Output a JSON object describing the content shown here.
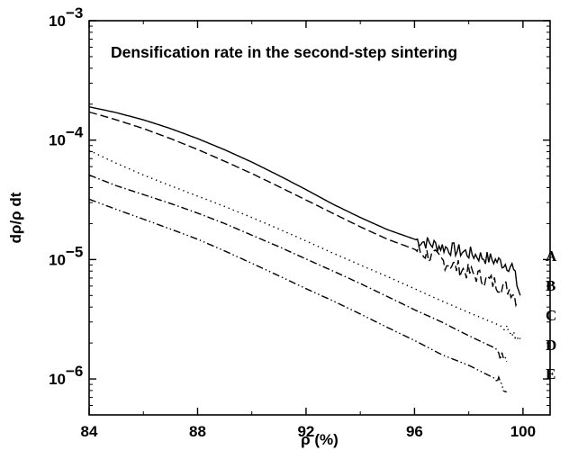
{
  "chart_data": {
    "type": "line",
    "title": "Densification rate in the second-step sintering",
    "xlabel": "ρ (%)",
    "ylabel": "dρ/ρ dt",
    "xlim": [
      84,
      101
    ],
    "ylim": [
      5e-07,
      0.001
    ],
    "yscale": "log",
    "x_ticks": [
      84,
      88,
      92,
      96,
      100
    ],
    "y_ticks": [
      {
        "value": 0.001,
        "base": "10",
        "exp": "−3"
      },
      {
        "value": 0.0001,
        "base": "10",
        "exp": "−4"
      },
      {
        "value": 1e-05,
        "base": "10",
        "exp": "−5"
      },
      {
        "value": 1e-06,
        "base": "10",
        "exp": "−6"
      }
    ],
    "grid": false,
    "legend": "none",
    "series": [
      {
        "name": "A",
        "dash": "solid",
        "noisy_from": 96.0,
        "noise": 0.06,
        "x": [
          84,
          85,
          86,
          87,
          88,
          89,
          90,
          91,
          92,
          93,
          94,
          95,
          96,
          97,
          98,
          99,
          99.6,
          99.9
        ],
        "y": [
          0.00019,
          0.00017,
          0.000148,
          0.000125,
          0.000103,
          8.3e-05,
          6.55e-05,
          5.05e-05,
          3.85e-05,
          2.9e-05,
          2.25e-05,
          1.78e-05,
          1.48e-05,
          1.28e-05,
          1.13e-05,
          9.8e-06,
          8.8e-06,
          5e-06
        ]
      },
      {
        "name": "B",
        "dash": "dashed",
        "noisy_from": 96.0,
        "noise": 0.07,
        "x": [
          84,
          85,
          86,
          87,
          88,
          89,
          90,
          91,
          92,
          93,
          94,
          95,
          96,
          97,
          98,
          99,
          99.6,
          99.8
        ],
        "y": [
          0.000172,
          0.000148,
          0.000125,
          0.000103,
          8.35e-05,
          6.65e-05,
          5.25e-05,
          4.08e-05,
          3.15e-05,
          2.43e-05,
          1.88e-05,
          1.48e-05,
          1.22e-05,
          9.8e-06,
          7.8e-06,
          6.3e-06,
          5.5e-06,
          4.5e-06
        ]
      },
      {
        "name": "C",
        "dash": "dotted",
        "noisy_from": 99.2,
        "noise": 0.04,
        "x": [
          84,
          85,
          86,
          87,
          88,
          89,
          90,
          91,
          92,
          93,
          94,
          95,
          96,
          97,
          98,
          99,
          99.5,
          99.9
        ],
        "y": [
          8.2e-05,
          6.4e-05,
          5.1e-05,
          4.15e-05,
          3.4e-05,
          2.78e-05,
          2.25e-05,
          1.8e-05,
          1.43e-05,
          1.13e-05,
          9e-06,
          7.2e-06,
          5.7e-06,
          4.5e-06,
          3.6e-06,
          2.9e-06,
          2.6e-06,
          2.2e-06
        ]
      },
      {
        "name": "D",
        "dash": "dash-dot",
        "noisy_from": 99.0,
        "noise": 0.05,
        "x": [
          84,
          85,
          86,
          87,
          88,
          89,
          90,
          91,
          92,
          93,
          94,
          95,
          96,
          97,
          98,
          99,
          99.4
        ],
        "y": [
          5.1e-05,
          4.15e-05,
          3.5e-05,
          2.95e-05,
          2.45e-05,
          2e-05,
          1.6e-05,
          1.28e-05,
          1.01e-05,
          8e-06,
          6.3e-06,
          4.9e-06,
          3.8e-06,
          3e-06,
          2.3e-06,
          1.8e-06,
          1.4e-06
        ]
      },
      {
        "name": "E",
        "dash": "dash-dot-dot",
        "noisy_from": 99.0,
        "noise": 0.05,
        "x": [
          84,
          85,
          86,
          87,
          88,
          89,
          90,
          91,
          92,
          93,
          94,
          95,
          96,
          97,
          98,
          99,
          99.4
        ],
        "y": [
          3.2e-05,
          2.63e-05,
          2.18e-05,
          1.8e-05,
          1.48e-05,
          1.18e-05,
          9.3e-06,
          7.3e-06,
          5.7e-06,
          4.5e-06,
          3.5e-06,
          2.7e-06,
          2.1e-06,
          1.6e-06,
          1.3e-06,
          1e-06,
          7.8e-07
        ]
      }
    ]
  }
}
